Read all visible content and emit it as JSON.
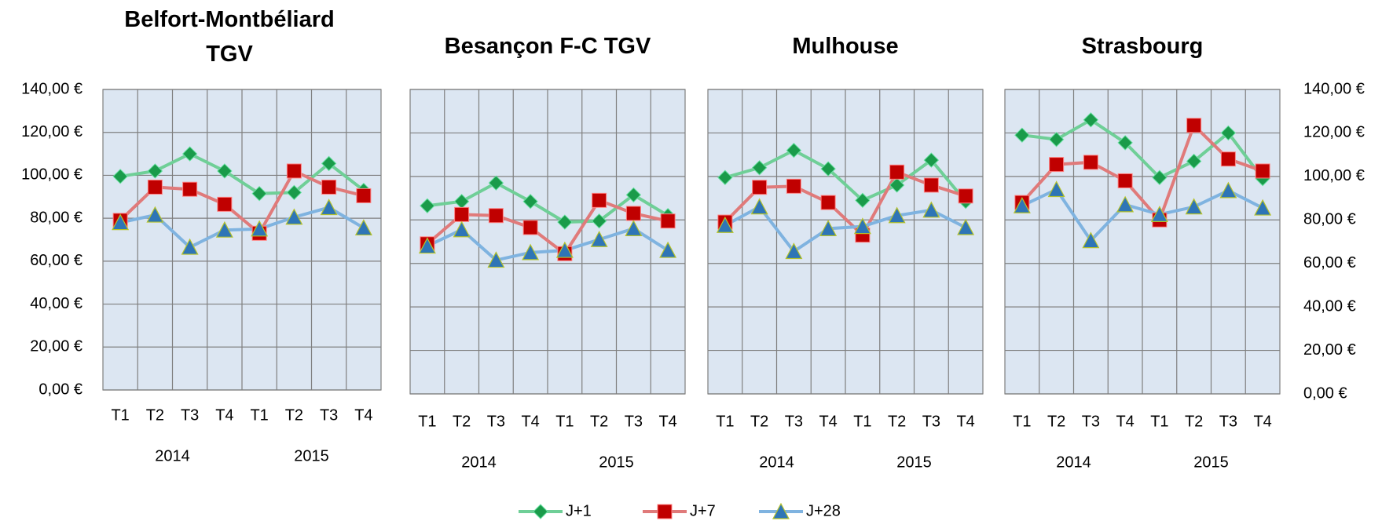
{
  "legend": [
    {
      "name": "J+1",
      "color": "#6fcf97",
      "marker": "diamond",
      "marker_color": "#1a9b4a"
    },
    {
      "name": "J+7",
      "color": "#e07a7a",
      "marker": "square",
      "marker_color": "#c00000"
    },
    {
      "name": "J+28",
      "color": "#7fb3e0",
      "marker": "triangle",
      "marker_color": "#2e75b6"
    }
  ],
  "chart_data": [
    {
      "type": "line",
      "title": "Belfort-Montbéliard TGV",
      "categories": [
        "T1",
        "T2",
        "T3",
        "T4",
        "T1",
        "T2",
        "T3",
        "T4"
      ],
      "category_groups": [
        "2014",
        "2015"
      ],
      "ylim": [
        0,
        140
      ],
      "yticks": [
        {
          "value": 0,
          "label": "0,00 €"
        },
        {
          "value": 20,
          "label": "20,00 €"
        },
        {
          "value": 40,
          "label": "40,00 €"
        },
        {
          "value": 60,
          "label": "60,00 €"
        },
        {
          "value": 80,
          "label": "80,00 €"
        },
        {
          "value": 100,
          "label": "100,00 €"
        },
        {
          "value": 120,
          "label": "120,00 €"
        },
        {
          "value": 140,
          "label": "140,00 €"
        }
      ],
      "grid": true,
      "series": [
        {
          "color": "#6fcf97",
          "values": [
            99.5,
            102,
            110,
            102,
            91.5,
            92,
            105.5,
            93
          ]
        },
        {
          "color": "#e07a7a",
          "values": [
            79,
            94.5,
            93.5,
            86.5,
            73,
            102,
            94.5,
            90.5
          ]
        },
        {
          "color": "#7fb3e0",
          "values": [
            78,
            81.5,
            66.5,
            74.5,
            75,
            80.5,
            85,
            75.5
          ]
        }
      ]
    },
    {
      "type": "line",
      "title": "Besançon F-C TGV",
      "categories": [
        "T1",
        "T2",
        "T3",
        "T4",
        "T1",
        "T2",
        "T3",
        "T4"
      ],
      "category_groups": [
        "2014",
        "2015"
      ],
      "ylim": [
        0,
        140
      ],
      "yticks": [
        0,
        20,
        40,
        60,
        80,
        100,
        120,
        140
      ],
      "grid": true,
      "series": [
        {
          "color": "#6fcf97",
          "values": [
            86.5,
            88.5,
            97,
            88.5,
            79,
            79.5,
            91.5,
            82
          ]
        },
        {
          "color": "#e07a7a",
          "values": [
            69,
            82.5,
            82,
            76.5,
            64.5,
            89,
            83,
            79.5
          ]
        },
        {
          "color": "#7fb3e0",
          "values": [
            68,
            75.5,
            61.5,
            65,
            66,
            71,
            76,
            66
          ]
        }
      ]
    },
    {
      "type": "line",
      "title": "Mulhouse",
      "categories": [
        "T1",
        "T2",
        "T3",
        "T4",
        "T1",
        "T2",
        "T3",
        "T4"
      ],
      "category_groups": [
        "2014",
        "2015"
      ],
      "ylim": [
        0,
        140
      ],
      "yticks": [
        0,
        20,
        40,
        60,
        80,
        100,
        120,
        140
      ],
      "grid": true,
      "series": [
        {
          "color": "#6fcf97",
          "values": [
            99.5,
            104,
            112,
            103.5,
            89,
            96,
            107.5,
            88.5
          ]
        },
        {
          "color": "#e07a7a",
          "values": [
            79,
            95,
            95.5,
            88,
            73,
            102,
            96,
            91
          ]
        },
        {
          "color": "#7fb3e0",
          "values": [
            77.5,
            86,
            65.5,
            76,
            77,
            82,
            84.5,
            76.5
          ]
        }
      ]
    },
    {
      "type": "line",
      "title": "Strasbourg",
      "categories": [
        "T1",
        "T2",
        "T3",
        "T4",
        "T1",
        "T2",
        "T3",
        "T4"
      ],
      "category_groups": [
        "2014",
        "2015"
      ],
      "ylim": [
        0,
        140
      ],
      "yticks": [
        {
          "value": 0,
          "label": "0,00 €"
        },
        {
          "value": 20,
          "label": "20,00 €"
        },
        {
          "value": 40,
          "label": "40,00 €"
        },
        {
          "value": 60,
          "label": "60,00 €"
        },
        {
          "value": 80,
          "label": "80,00 €"
        },
        {
          "value": 100,
          "label": "100,00 €"
        },
        {
          "value": 120,
          "label": "120,00 €"
        },
        {
          "value": 140,
          "label": "140,00 €"
        }
      ],
      "grid": true,
      "series": [
        {
          "color": "#6fcf97",
          "values": [
            119,
            117,
            126,
            115.5,
            99.5,
            107,
            120,
            99
          ]
        },
        {
          "color": "#e07a7a",
          "values": [
            88,
            105.5,
            106.5,
            98,
            80,
            123.5,
            108,
            102.5
          ]
        },
        {
          "color": "#7fb3e0",
          "values": [
            86.5,
            94,
            70.5,
            87,
            82.5,
            86,
            93.5,
            85.5
          ]
        }
      ]
    }
  ]
}
